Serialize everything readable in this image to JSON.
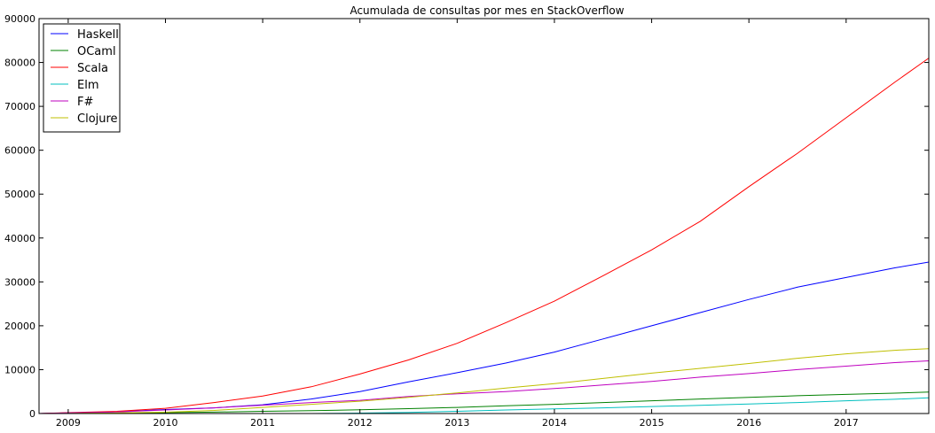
{
  "chart_data": {
    "type": "line",
    "title": "Acumulada de consultas por mes en StackOverflow",
    "xlabel": "",
    "ylabel": "",
    "xlim": [
      2008.7,
      2017.85
    ],
    "ylim": [
      0,
      90000
    ],
    "x_ticks": [
      2009,
      2010,
      2011,
      2012,
      2013,
      2014,
      2015,
      2016,
      2017
    ],
    "x_tick_labels": [
      "2009",
      "2010",
      "2011",
      "2012",
      "2013",
      "2014",
      "2015",
      "2016",
      "2017"
    ],
    "y_ticks": [
      0,
      10000,
      20000,
      30000,
      40000,
      50000,
      60000,
      70000,
      80000,
      90000
    ],
    "y_tick_labels": [
      "0",
      "10000",
      "20000",
      "30000",
      "40000",
      "50000",
      "60000",
      "70000",
      "80000",
      "90000"
    ],
    "grid": false,
    "legend_position": "top-left",
    "x": [
      2008.7,
      2009.0,
      2009.5,
      2010.0,
      2010.5,
      2011.0,
      2011.5,
      2012.0,
      2012.5,
      2013.0,
      2013.5,
      2014.0,
      2014.5,
      2015.0,
      2015.5,
      2016.0,
      2016.5,
      2017.0,
      2017.5,
      2017.85
    ],
    "series": [
      {
        "name": "Haskell",
        "color": "#0000ff",
        "values": [
          0,
          150,
          400,
          900,
          1300,
          2000,
          3300,
          5000,
          7200,
          9300,
          11500,
          14000,
          17000,
          20000,
          23000,
          26000,
          28800,
          31000,
          33200,
          34500
        ]
      },
      {
        "name": "OCaml",
        "color": "#008000",
        "values": [
          0,
          30,
          100,
          200,
          330,
          500,
          650,
          850,
          1100,
          1400,
          1750,
          2100,
          2500,
          2900,
          3300,
          3700,
          4050,
          4350,
          4650,
          4900
        ]
      },
      {
        "name": "Scala",
        "color": "#ff0000",
        "values": [
          0,
          200,
          500,
          1200,
          2500,
          4000,
          6100,
          9000,
          12200,
          16000,
          20700,
          25600,
          31400,
          37300,
          43800,
          51700,
          59300,
          67400,
          75500,
          81000
        ]
      },
      {
        "name": "Elm",
        "color": "#00bfbf",
        "values": [
          0,
          0,
          0,
          0,
          0,
          0,
          0,
          100,
          250,
          500,
          800,
          1050,
          1300,
          1600,
          1850,
          2150,
          2500,
          2900,
          3250,
          3600
        ]
      },
      {
        "name": "F#",
        "color": "#bf00bf",
        "values": [
          0,
          150,
          350,
          800,
          1300,
          1900,
          2500,
          3000,
          3900,
          4500,
          5000,
          5700,
          6500,
          7300,
          8300,
          9100,
          10000,
          10800,
          11600,
          12000
        ]
      },
      {
        "name": "Clojure",
        "color": "#bfbf00",
        "values": [
          0,
          30,
          150,
          300,
          700,
          1400,
          2100,
          2800,
          3700,
          4700,
          5800,
          6800,
          8000,
          9200,
          10300,
          11400,
          12600,
          13600,
          14400,
          14800
        ]
      }
    ]
  }
}
